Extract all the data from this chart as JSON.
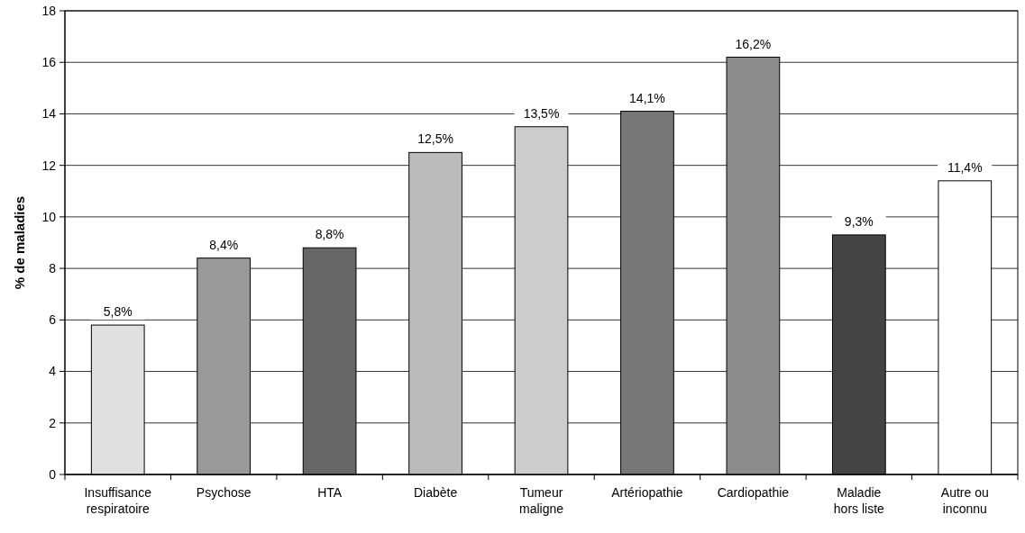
{
  "chart_data": {
    "type": "bar",
    "ylabel": "% de maladies",
    "categories": [
      "Insuffisance\nrespiratoire",
      "Psychose",
      "HTA",
      "Diabète",
      "Tumeur\nmaligne",
      "Artériopathie",
      "Cardiopathie",
      "Maladie\nhors liste",
      "Autre ou\ninconnu"
    ],
    "values": [
      5.8,
      8.4,
      8.8,
      12.5,
      13.5,
      14.1,
      16.2,
      9.3,
      11.4
    ],
    "value_labels": [
      "5,8%",
      "8,4%",
      "8,8%",
      "12,5%",
      "13,5%",
      "14,1%",
      "16,2%",
      "9,3%",
      "11,4%"
    ],
    "colors": [
      "#e0e0e0",
      "#999999",
      "#666666",
      "#bbbbbb",
      "#cccccc",
      "#777777",
      "#8c8c8c",
      "#444444",
      "#ffffff"
    ],
    "ylim": [
      0,
      18
    ],
    "yticks": [
      0,
      2,
      4,
      6,
      8,
      10,
      12,
      14,
      16,
      18
    ],
    "grid": "y"
  }
}
